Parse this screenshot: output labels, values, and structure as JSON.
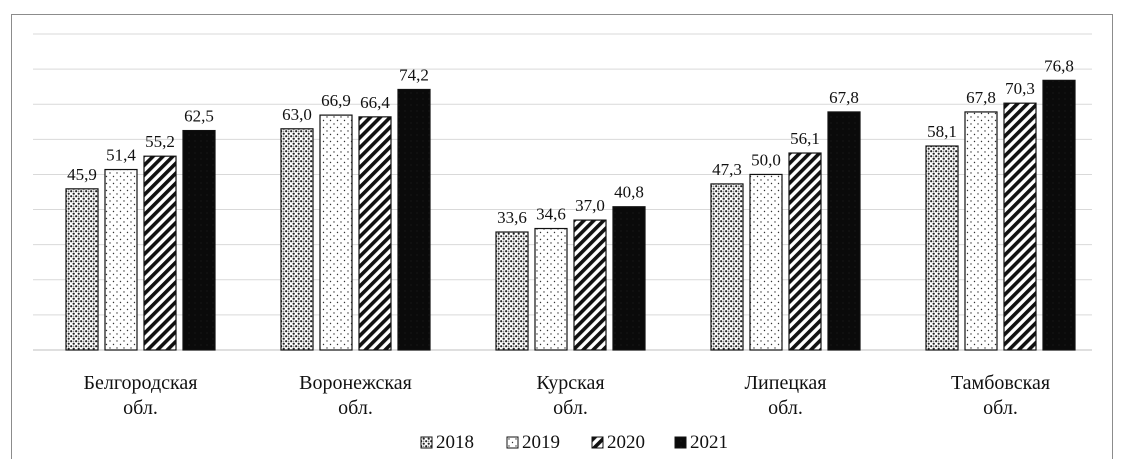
{
  "chart_data": {
    "type": "bar",
    "categories": [
      [
        "Белгородская",
        "обл."
      ],
      [
        "Воронежская",
        "обл."
      ],
      [
        "Курская",
        "обл."
      ],
      [
        "Липецкая",
        "обл."
      ],
      [
        "Тамбовская",
        "обл."
      ]
    ],
    "series": [
      {
        "name": "2018",
        "pattern": "dots",
        "values": [
          45.9,
          63.0,
          33.6,
          47.3,
          58.1
        ],
        "labels": [
          "45,9",
          "63,0",
          "33,6",
          "47,3",
          "58,1"
        ]
      },
      {
        "name": "2019",
        "pattern": "sparse-dots",
        "values": [
          51.4,
          66.9,
          34.6,
          50.0,
          67.8
        ],
        "labels": [
          "51,4",
          "66,9",
          "34,6",
          "50,0",
          "67,8"
        ]
      },
      {
        "name": "2020",
        "pattern": "diagonal-stripes",
        "values": [
          55.2,
          66.4,
          37.0,
          56.1,
          70.3
        ],
        "labels": [
          "55,2",
          "66,4",
          "37,0",
          "56,1",
          "70,3"
        ]
      },
      {
        "name": "2021",
        "pattern": "solid-black",
        "values": [
          62.5,
          74.2,
          40.8,
          67.8,
          76.8
        ],
        "labels": [
          "62,5",
          "74,2",
          "40,8",
          "67,8",
          "76,8"
        ]
      }
    ],
    "ylim": [
      0,
      90
    ],
    "grid": true,
    "gridline_count": 9,
    "legend_position": "bottom",
    "title": "",
    "xlabel": "",
    "ylabel": ""
  }
}
